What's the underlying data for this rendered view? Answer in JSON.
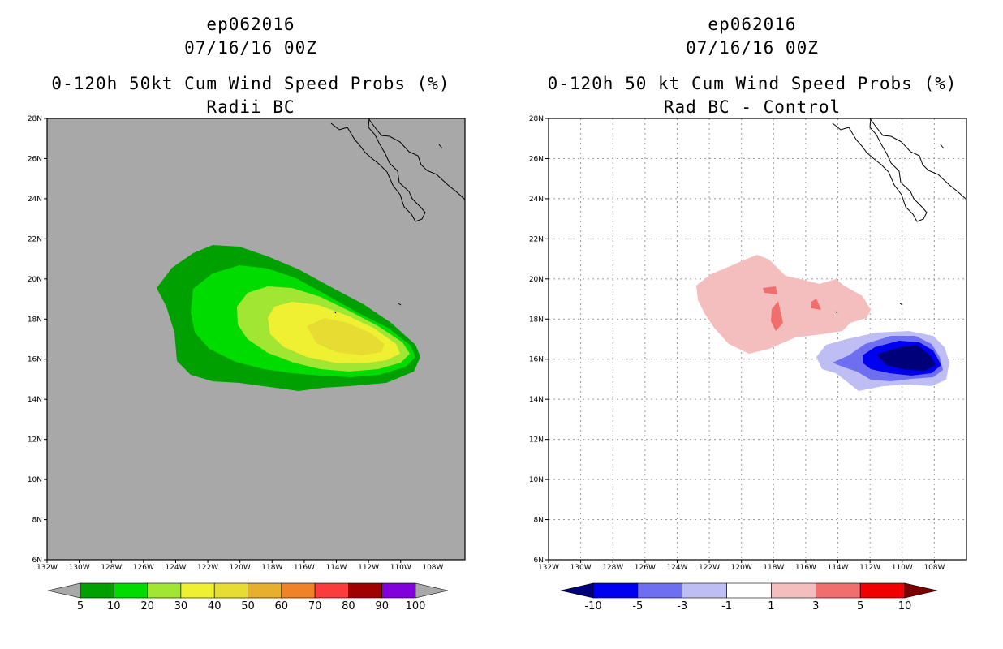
{
  "chart_data": [
    {
      "type": "contour-map",
      "title_lines": [
        "ep062016",
        "07/16/16 00Z",
        "0-120h 50kt Cum Wind Speed Probs (%)",
        "Radii BC"
      ],
      "lat_range": [
        6,
        28
      ],
      "lon_range": [
        132,
        106
      ],
      "yticks": [
        "6N",
        "8N",
        "10N",
        "12N",
        "14N",
        "16N",
        "18N",
        "20N",
        "22N",
        "24N",
        "26N",
        "28N"
      ],
      "xticks": [
        "132W",
        "130W",
        "128W",
        "126W",
        "124W",
        "122W",
        "120W",
        "118W",
        "116W",
        "114W",
        "112W",
        "110W",
        "108W"
      ],
      "background": "#a8a8a8",
      "colorbar": {
        "labels": [
          "5",
          "10",
          "20",
          "30",
          "40",
          "50",
          "60",
          "70",
          "80",
          "90",
          "100"
        ],
        "colors": [
          "#a8a8a8",
          "#00a000",
          "#00dc00",
          "#a0e632",
          "#f0f032",
          "#e6dc32",
          "#e6af2d",
          "#f08228",
          "#fa3c3c",
          "#a00000",
          "#8200dc",
          "#a8a8a8"
        ]
      },
      "grid": false
    },
    {
      "type": "contour-map",
      "title_lines": [
        "ep062016",
        "07/16/16 00Z",
        "0-120h 50 kt Cum Wind Speed Probs (%)",
        "Rad BC - Control"
      ],
      "lat_range": [
        6,
        28
      ],
      "lon_range": [
        132,
        106
      ],
      "yticks": [
        "6N",
        "8N",
        "10N",
        "12N",
        "14N",
        "16N",
        "18N",
        "20N",
        "22N",
        "24N",
        "26N",
        "28N"
      ],
      "xticks": [
        "132W",
        "130W",
        "128W",
        "126W",
        "124W",
        "122W",
        "120W",
        "118W",
        "116W",
        "114W",
        "112W",
        "110W",
        "108W"
      ],
      "background": "#ffffff",
      "colorbar": {
        "labels": [
          "-10",
          "-5",
          "-3",
          "-1",
          "1",
          "3",
          "5",
          "10"
        ],
        "colors": [
          "#00007a",
          "#0000f0",
          "#6e6ef0",
          "#bebef5",
          "#ffffff",
          "#f5bebe",
          "#f06e6e",
          "#f00000",
          "#7a0000"
        ]
      },
      "grid": true
    }
  ]
}
